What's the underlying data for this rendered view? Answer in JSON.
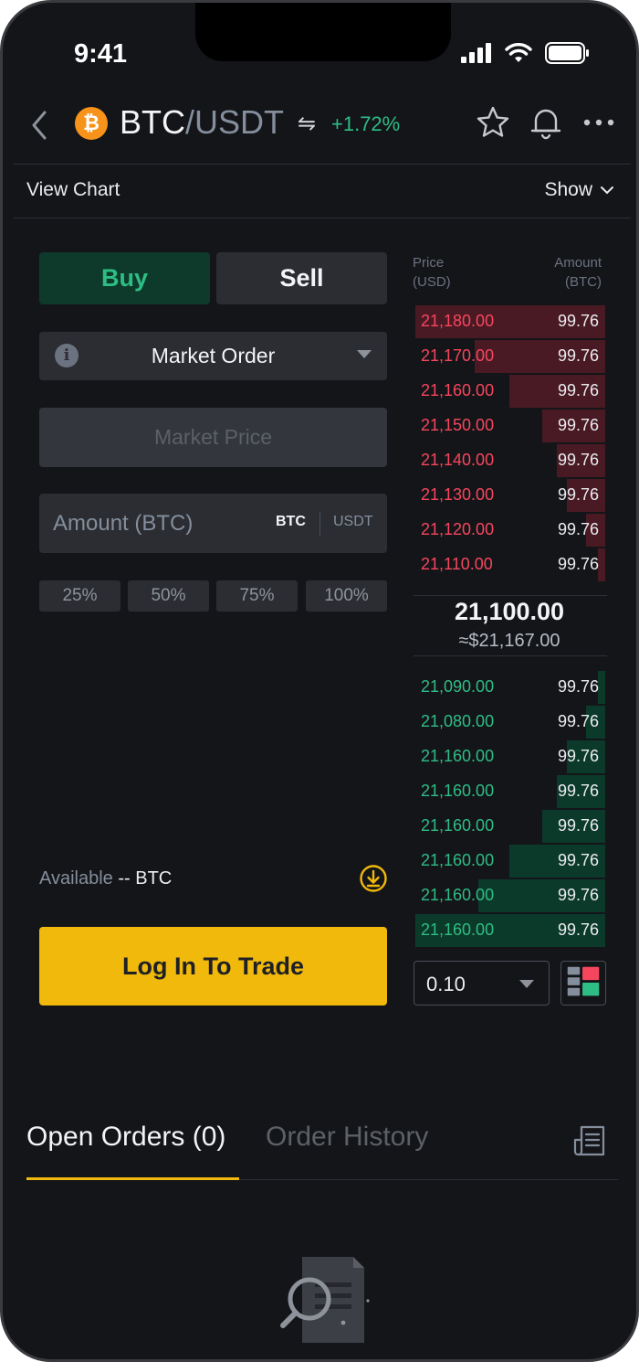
{
  "status_bar": {
    "time": "9:41"
  },
  "header": {
    "coin_symbol": "₿",
    "base": "BTC",
    "separator_quote": "/USDT",
    "swap_glyph": "⇋",
    "change": "+1.72%",
    "icons": [
      "back-chevron-icon",
      "star-icon",
      "bell-icon",
      "more-icon"
    ]
  },
  "subheader": {
    "view_chart": "View Chart",
    "show": "Show"
  },
  "trade_form": {
    "buy_label": "Buy",
    "sell_label": "Sell",
    "order_type": "Market Order",
    "info_glyph": "i",
    "market_price_placeholder": "Market Price",
    "amount_placeholder": "Amount (BTC)",
    "unit_btc": "BTC",
    "unit_usdt": "USDT",
    "percentages": [
      "25%",
      "50%",
      "75%",
      "100%"
    ],
    "available_label": "Available",
    "available_value": "-- BTC",
    "login_button": "Log In To Trade"
  },
  "order_book": {
    "price_header": [
      "Price",
      "(USD)"
    ],
    "amount_header": [
      "Amount",
      "(BTC)"
    ],
    "asks": [
      {
        "price": "21,180.00",
        "amount": "99.76",
        "depth": 0.99
      },
      {
        "price": "21,170.00",
        "amount": "99.76",
        "depth": 0.68
      },
      {
        "price": "21,160.00",
        "amount": "99.76",
        "depth": 0.5
      },
      {
        "price": "21,150.00",
        "amount": "99.76",
        "depth": 0.33
      },
      {
        "price": "21,140.00",
        "amount": "99.76",
        "depth": 0.25
      },
      {
        "price": "21,130.00",
        "amount": "99.76",
        "depth": 0.2
      },
      {
        "price": "21,120.00",
        "amount": "99.76",
        "depth": 0.1
      },
      {
        "price": "21,110.00",
        "amount": "99.76",
        "depth": 0.04
      }
    ],
    "mid_price": "21,100.00",
    "mid_fiat": "≈$21,167.00",
    "bids": [
      {
        "price": "21,090.00",
        "amount": "99.76",
        "depth": 0.04
      },
      {
        "price": "21,080.00",
        "amount": "99.76",
        "depth": 0.1
      },
      {
        "price": "21,160.00",
        "amount": "99.76",
        "depth": 0.2
      },
      {
        "price": "21,160.00",
        "amount": "99.76",
        "depth": 0.25
      },
      {
        "price": "21,160.00",
        "amount": "99.76",
        "depth": 0.33
      },
      {
        "price": "21,160.00",
        "amount": "99.76",
        "depth": 0.5
      },
      {
        "price": "21,160.00",
        "amount": "99.76",
        "depth": 0.66
      },
      {
        "price": "21,160.00",
        "amount": "99.76",
        "depth": 0.99
      }
    ],
    "decimals": "0.10"
  },
  "bottom_tabs": {
    "open_orders": "Open Orders (0)",
    "order_history": "Order History"
  },
  "colors": {
    "accent": "#f0b90b",
    "buy": "#2ebd85",
    "sell": "#f6465d",
    "background": "#141519"
  }
}
